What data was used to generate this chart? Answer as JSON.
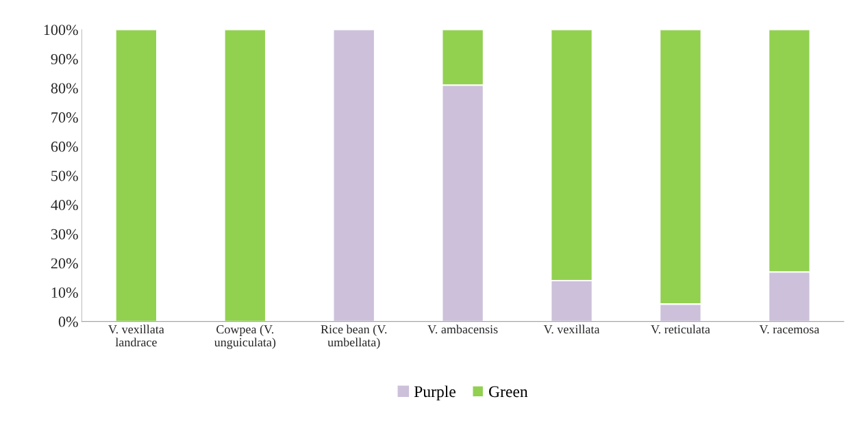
{
  "chart_data": {
    "type": "bar",
    "stacked": true,
    "categories": [
      "V. vexillata\nlandrace",
      "Cowpea (V.\nunguiculata)",
      "Rice bean (V.\numbellata)",
      "V. ambacensis",
      "V. vexillata",
      "V. reticulata",
      "V. racemosa"
    ],
    "series": [
      {
        "name": "Purple",
        "color": "#ccc0da",
        "values": [
          0,
          0,
          100,
          81,
          14,
          6,
          17
        ]
      },
      {
        "name": "Green",
        "color": "#92d050",
        "values": [
          100,
          100,
          0,
          19,
          86,
          94,
          83
        ]
      }
    ],
    "ylim": [
      0,
      100
    ],
    "yticks": [
      {
        "value": 0,
        "label": "0%"
      },
      {
        "value": 10,
        "label": "10%"
      },
      {
        "value": 20,
        "label": "20%"
      },
      {
        "value": 30,
        "label": "30%"
      },
      {
        "value": 40,
        "label": "40%"
      },
      {
        "value": 50,
        "label": "50%"
      },
      {
        "value": 60,
        "label": "60%"
      },
      {
        "value": 70,
        "label": "70%"
      },
      {
        "value": 80,
        "label": "80%"
      },
      {
        "value": 90,
        "label": "90%"
      },
      {
        "value": 100,
        "label": "100%"
      }
    ],
    "grid": false,
    "legend": "bottom"
  }
}
